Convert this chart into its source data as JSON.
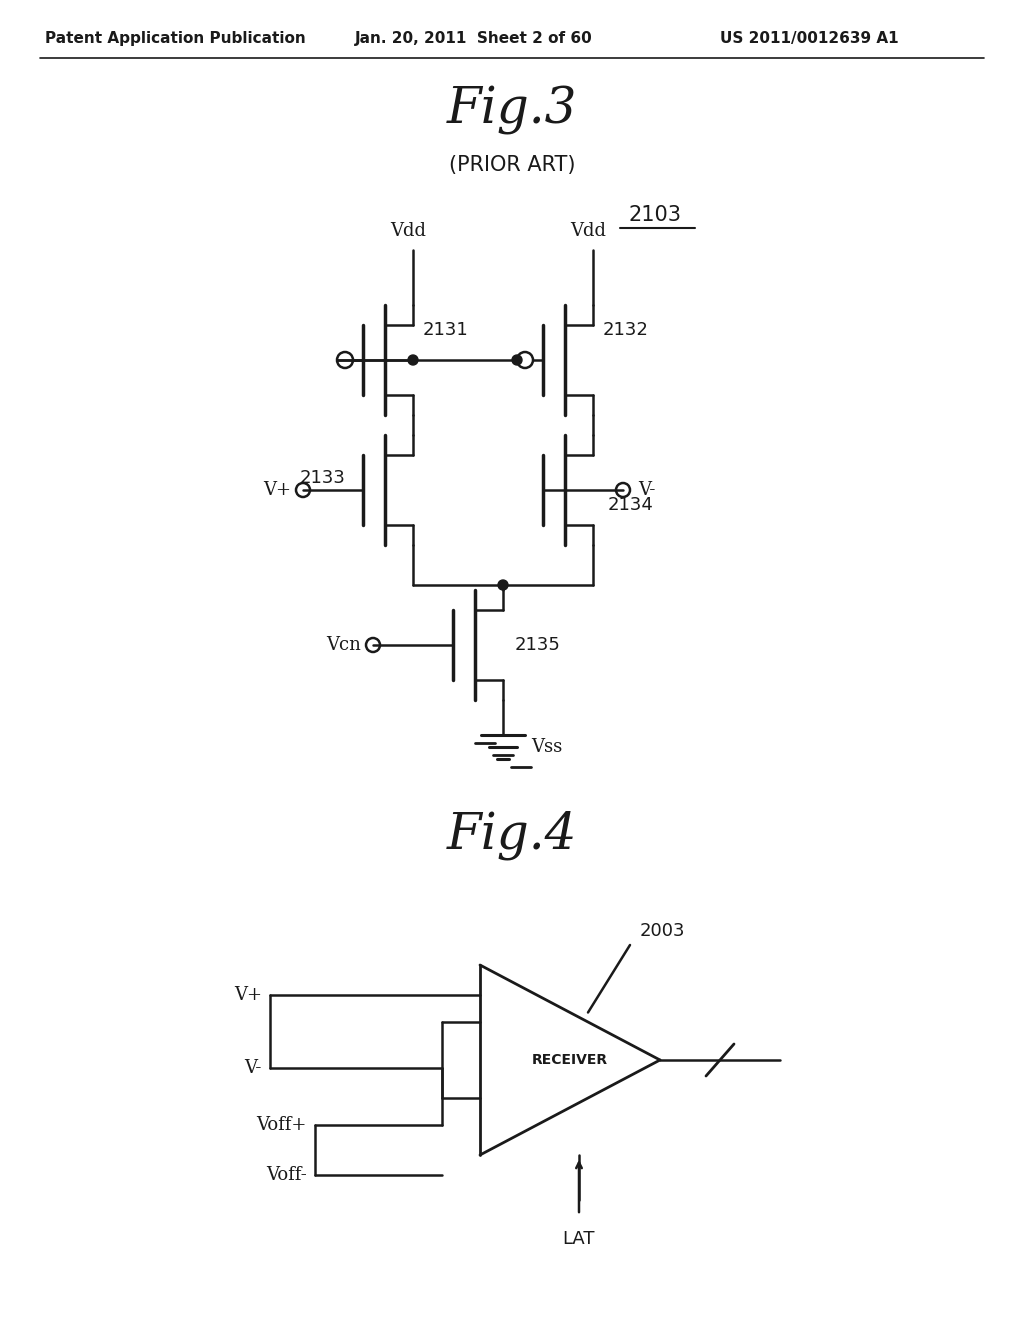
{
  "bg_color": "#ffffff",
  "line_color": "#1a1a1a",
  "header_left": "Patent Application Publication",
  "header_mid": "Jan. 20, 2011  Sheet 2 of 60",
  "header_right": "US 2011/0012639 A1",
  "fig3_title": "Fig.3",
  "fig3_subtitle": "(PRIOR ART)",
  "fig3_label": "2103",
  "fig4_title": "Fig.4",
  "t2131": "2131",
  "t2132": "2132",
  "t2133": "2133",
  "t2134": "2134",
  "t2135": "2135",
  "receiver_label": "2003",
  "receiver_text": "RECEIVER",
  "lat_label": "LAT",
  "vdd_label": "Vdd",
  "vss_label": "Vss",
  "vplus_label": "V+",
  "vminus_label": "V-",
  "vcn_label": "Vcn",
  "voffplus_label": "Voff+",
  "voffminus_label": "Voff-"
}
